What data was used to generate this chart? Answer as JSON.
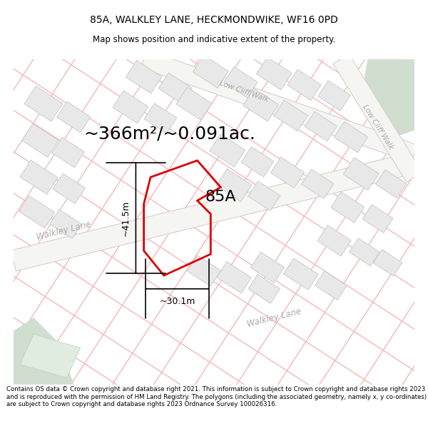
{
  "title": "85A, WALKLEY LANE, HECKMONDWIKE, WF16 0PD",
  "subtitle": "Map shows position and indicative extent of the property.",
  "area_text": "~366m²/~0.091ac.",
  "label_85a": "85A",
  "dim_width": "~30.1m",
  "dim_height": "~41.5m",
  "footer": "Contains OS data © Crown copyright and database right 2021. This information is subject to Crown copyright and database rights 2023 and is reproduced with the permission of HM Land Registry. The polygons (including the associated geometry, namely x, y co-ordinates) are subject to Crown copyright and database rights 2023 Ordnance Survey 100026316.",
  "bg_color": "#ffffff",
  "map_bg": "#ffffff",
  "road_line_color": "#f5b8b8",
  "building_fill": "#e8e8e8",
  "building_edge": "#c8c8c8",
  "property_edge": "#dd0000",
  "green_color": "#cfdecf",
  "road_fill": "#ffffff",
  "road_edge_color": "#c8c0c0",
  "street_text_color": "#aaaaaa",
  "title_fontsize": 10,
  "subtitle_fontsize": 8.5,
  "area_fontsize": 18,
  "label_fontsize": 16,
  "dim_fontsize": 9,
  "footer_fontsize": 6.2
}
